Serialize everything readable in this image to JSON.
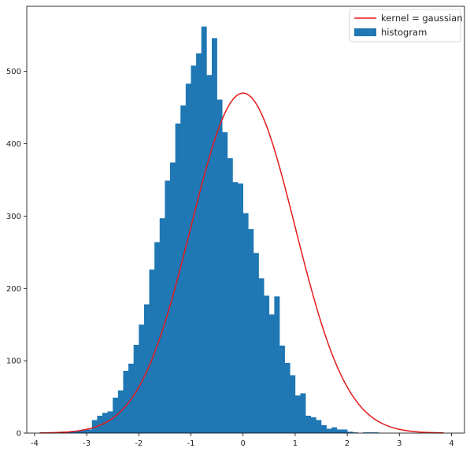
{
  "chart_data": {
    "type": "bar",
    "title": "",
    "xlabel": "",
    "ylabel": "",
    "xlim": [
      -4.15,
      4.25
    ],
    "ylim": [
      0,
      590
    ],
    "grid": false,
    "legend_position": "top-right",
    "xticks": [
      {
        "value": -4,
        "label": "-4"
      },
      {
        "value": -3,
        "label": "-3"
      },
      {
        "value": -2,
        "label": "-2"
      },
      {
        "value": -1,
        "label": "-1"
      },
      {
        "value": 0,
        "label": "0"
      },
      {
        "value": 1,
        "label": "1"
      },
      {
        "value": 2,
        "label": "2"
      },
      {
        "value": 3,
        "label": "3"
      },
      {
        "value": 4,
        "label": "4"
      }
    ],
    "yticks": [
      {
        "value": 0,
        "label": "0"
      },
      {
        "value": 100,
        "label": "100"
      },
      {
        "value": 200,
        "label": "200"
      },
      {
        "value": 300,
        "label": "300"
      },
      {
        "value": 400,
        "label": "400"
      },
      {
        "value": 500,
        "label": "500"
      }
    ],
    "histogram": {
      "name": "histogram",
      "color": "#1f77b4",
      "bin_start": -3.9,
      "bin_width": 0.1,
      "counts": [
        1,
        1,
        1,
        1,
        2,
        2,
        3,
        3,
        5,
        5,
        18,
        24,
        28,
        30,
        49,
        59,
        86,
        96,
        122,
        150,
        178,
        226,
        264,
        297,
        349,
        374,
        428,
        453,
        483,
        508,
        525,
        562,
        495,
        546,
        461,
        416,
        380,
        347,
        345,
        304,
        282,
        249,
        214,
        190,
        164,
        189,
        121,
        97,
        80,
        52,
        55,
        24,
        22,
        18,
        11,
        6,
        8,
        5,
        5,
        2,
        1,
        0,
        1,
        1,
        1
      ]
    },
    "kde": {
      "name": "kernel = gaussian",
      "color": "#e31a1c",
      "peak": 470,
      "sigma": 1.0,
      "x_start": -3.9,
      "x_end": 3.85
    }
  }
}
